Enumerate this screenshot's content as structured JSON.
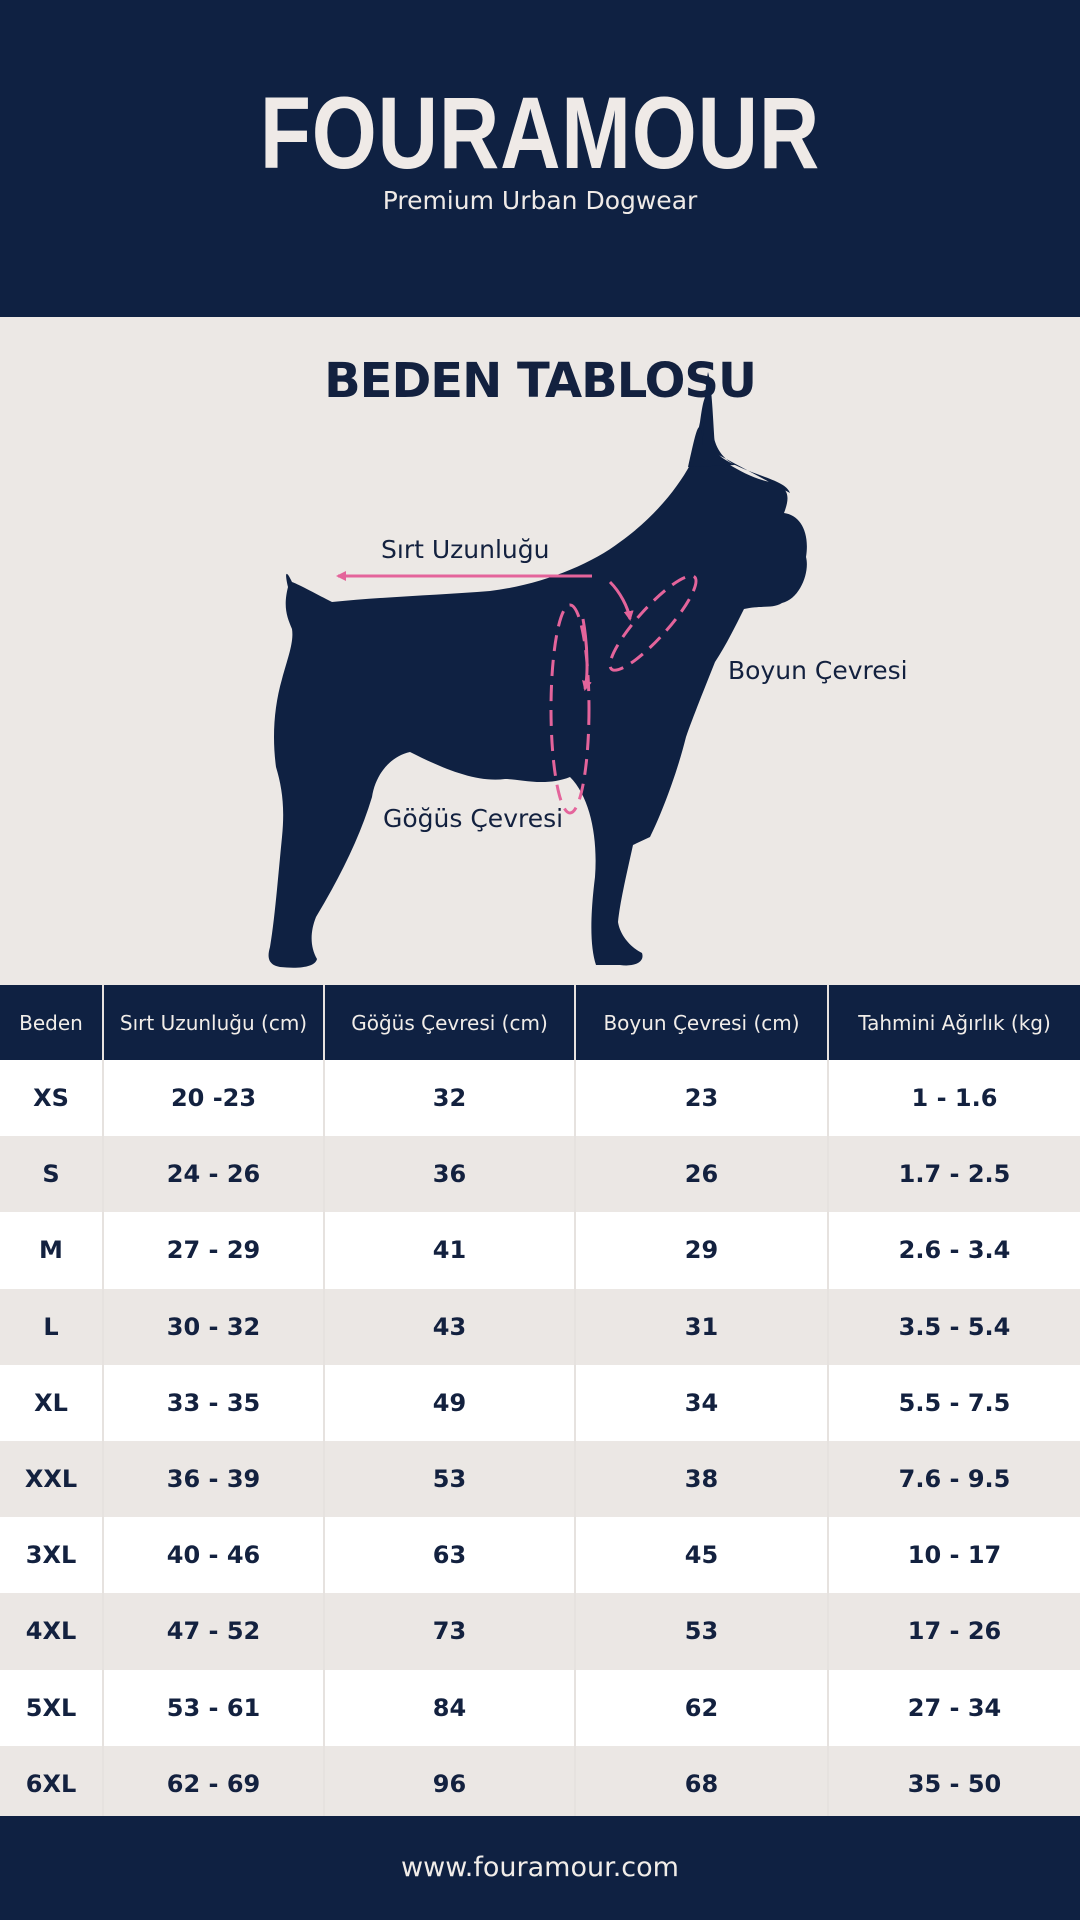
{
  "header": {
    "brand": "FOURAMOUR",
    "tagline": "Premium Urban Dogwear"
  },
  "section": {
    "title": "BEDEN TABLOSU"
  },
  "diagram": {
    "back_length_label": "Sırt Uzunluğu",
    "neck_label": "Boyun Çevresi",
    "chest_label": "Göğüs Çevresi",
    "accent_color": "#e4649b",
    "silhouette_color": "#0f2142"
  },
  "table": {
    "headers": [
      "Beden",
      "Sırt Uzunluğu (cm)",
      "Göğüs Çevresi (cm)",
      "Boyun Çevresi (cm)",
      "Tahmini Ağırlık (kg)"
    ],
    "rows": [
      [
        "XS",
        "20 -23",
        "32",
        "23",
        "1 - 1.6"
      ],
      [
        "S",
        "24 - 26",
        "36",
        "26",
        "1.7 - 2.5"
      ],
      [
        "M",
        "27 - 29",
        "41",
        "29",
        "2.6 - 3.4"
      ],
      [
        "L",
        "30 - 32",
        "43",
        "31",
        "3.5 - 5.4"
      ],
      [
        "XL",
        "33 - 35",
        "49",
        "34",
        "5.5 - 7.5"
      ],
      [
        "XXL",
        "36 - 39",
        "53",
        "38",
        "7.6 - 9.5"
      ],
      [
        "3XL",
        "40 - 46",
        "63",
        "45",
        "10 - 17"
      ],
      [
        "4XL",
        "47 - 52",
        "73",
        "53",
        "17 - 26"
      ],
      [
        "5XL",
        "53 - 61",
        "84",
        "62",
        "27 - 34"
      ],
      [
        "6XL",
        "62 - 69",
        "96",
        "68",
        "35 - 50"
      ]
    ]
  },
  "footer": {
    "url": "www.fouramour.com"
  }
}
